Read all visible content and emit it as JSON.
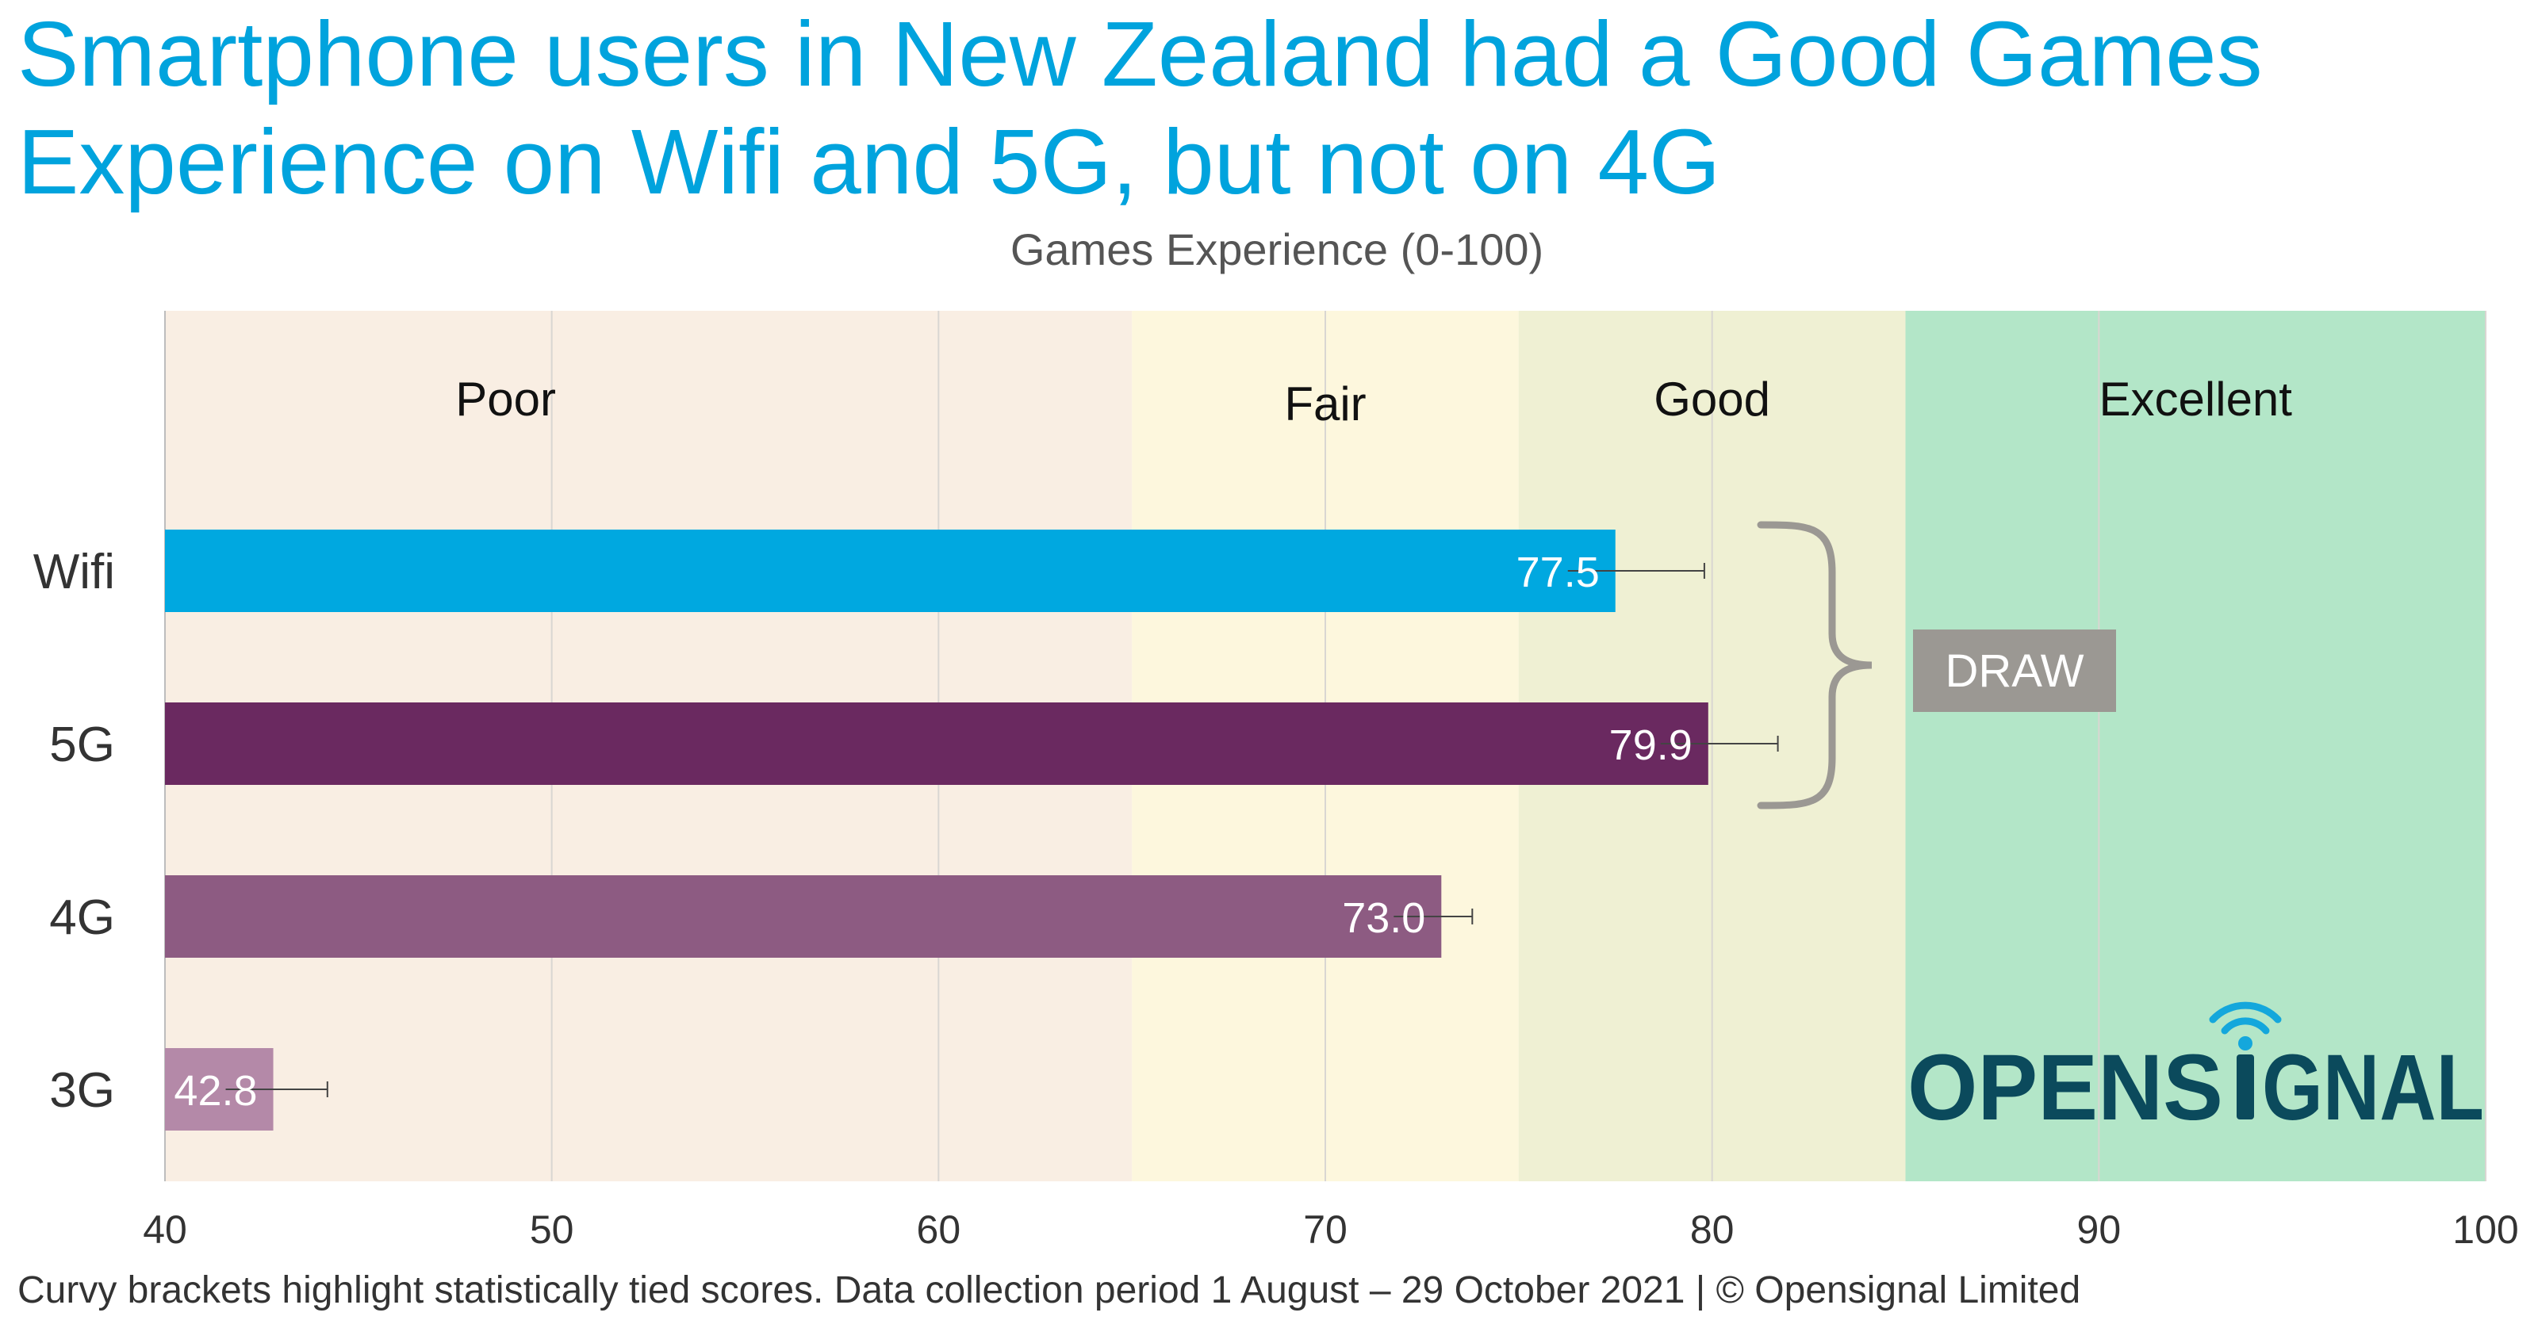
{
  "title": "Smartphone users in New Zealand had a Good Games Experience on Wifi and 5G, but not on 4G",
  "footer": "Curvy brackets highlight statistically tied scores. Data collection period 1 August – 29 October 2021  |  © Opensignal Limited",
  "brand": {
    "name_left": "OPENS",
    "name_right": "GNAL",
    "color": "#0b4a5c",
    "signal_color": "#14a7dc"
  },
  "draw_label": "DRAW",
  "chart_data": {
    "type": "bar",
    "orientation": "horizontal",
    "xlabel": "Games Experience (0-100)",
    "xlim": [
      40,
      100
    ],
    "xticks": [
      40,
      50,
      60,
      70,
      80,
      90,
      100
    ],
    "categories": [
      "Wifi",
      "5G",
      "4G",
      "3G"
    ],
    "values": [
      77.5,
      79.9,
      73.0,
      42.8
    ],
    "value_labels": [
      "77.5",
      "79.9",
      "73.0",
      "42.8"
    ],
    "error_upper": [
      79.8,
      81.7,
      73.8,
      44.2
    ],
    "colors": [
      "#00a8e0",
      "#6a2960",
      "#8d5b82",
      "#b489a8"
    ],
    "bands": [
      {
        "label": "Poor",
        "from": 40,
        "to": 65,
        "color": "#f9eee3"
      },
      {
        "label": "Fair",
        "from": 65,
        "to": 75,
        "color": "#fdf7dd"
      },
      {
        "label": "Good",
        "from": 75,
        "to": 85,
        "color": "#eff0d3"
      },
      {
        "label": "Excellent",
        "from": 85,
        "to": 100,
        "color": "#b3e6c8"
      }
    ],
    "tied_groups": [
      {
        "categories": [
          "Wifi",
          "5G"
        ],
        "label": "DRAW"
      }
    ],
    "grid": true
  }
}
